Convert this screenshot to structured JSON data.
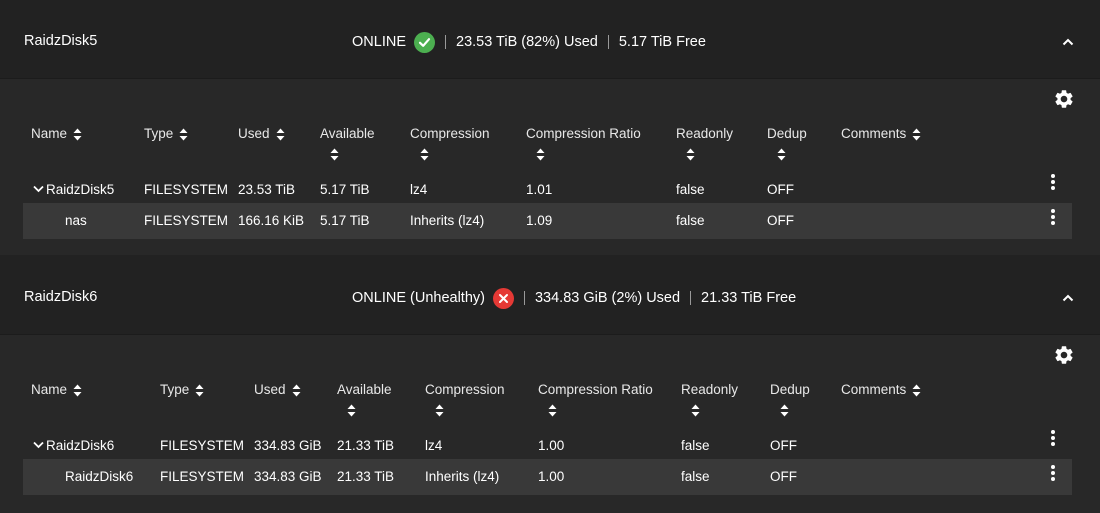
{
  "pools": [
    {
      "name": "RaidzDisk5",
      "status": "ONLINE",
      "status_icon": "check-circle-icon",
      "status_color": "#4caf50",
      "used": "23.53 TiB (82%) Used",
      "free": "5.17 TiB Free",
      "columns": [
        "Name",
        "Type",
        "Used",
        "Available",
        "Compression",
        "Compression Ratio",
        "Readonly",
        "Dedup",
        "Comments"
      ],
      "rows": [
        {
          "name": "RaidzDisk5",
          "type": "FILESYSTEM",
          "used": "23.53 TiB",
          "available": "5.17 TiB",
          "compression": "lz4",
          "ratio": "1.01",
          "readonly": "false",
          "dedup": "OFF",
          "comments": ""
        },
        {
          "name": "nas",
          "type": "FILESYSTEM",
          "used": "166.16 KiB",
          "available": "5.17 TiB",
          "compression": "Inherits (lz4)",
          "ratio": "1.09",
          "readonly": "false",
          "dedup": "OFF",
          "comments": ""
        }
      ]
    },
    {
      "name": "RaidzDisk6",
      "status": "ONLINE (Unhealthy)",
      "status_icon": "error-circle-icon",
      "status_color": "#e53935",
      "used": "334.83 GiB (2%) Used",
      "free": "21.33 TiB Free",
      "columns": [
        "Name",
        "Type",
        "Used",
        "Available",
        "Compression",
        "Compression Ratio",
        "Readonly",
        "Dedup",
        "Comments"
      ],
      "rows": [
        {
          "name": "RaidzDisk6",
          "type": "FILESYSTEM",
          "used": "334.83 GiB",
          "available": "21.33 TiB",
          "compression": "lz4",
          "ratio": "1.00",
          "readonly": "false",
          "dedup": "OFF",
          "comments": ""
        },
        {
          "name": "RaidzDisk6",
          "type": "FILESYSTEM",
          "used": "334.83 GiB",
          "available": "21.33 TiB",
          "compression": "Inherits (lz4)",
          "ratio": "1.00",
          "readonly": "false",
          "dedup": "OFF",
          "comments": ""
        }
      ]
    }
  ]
}
